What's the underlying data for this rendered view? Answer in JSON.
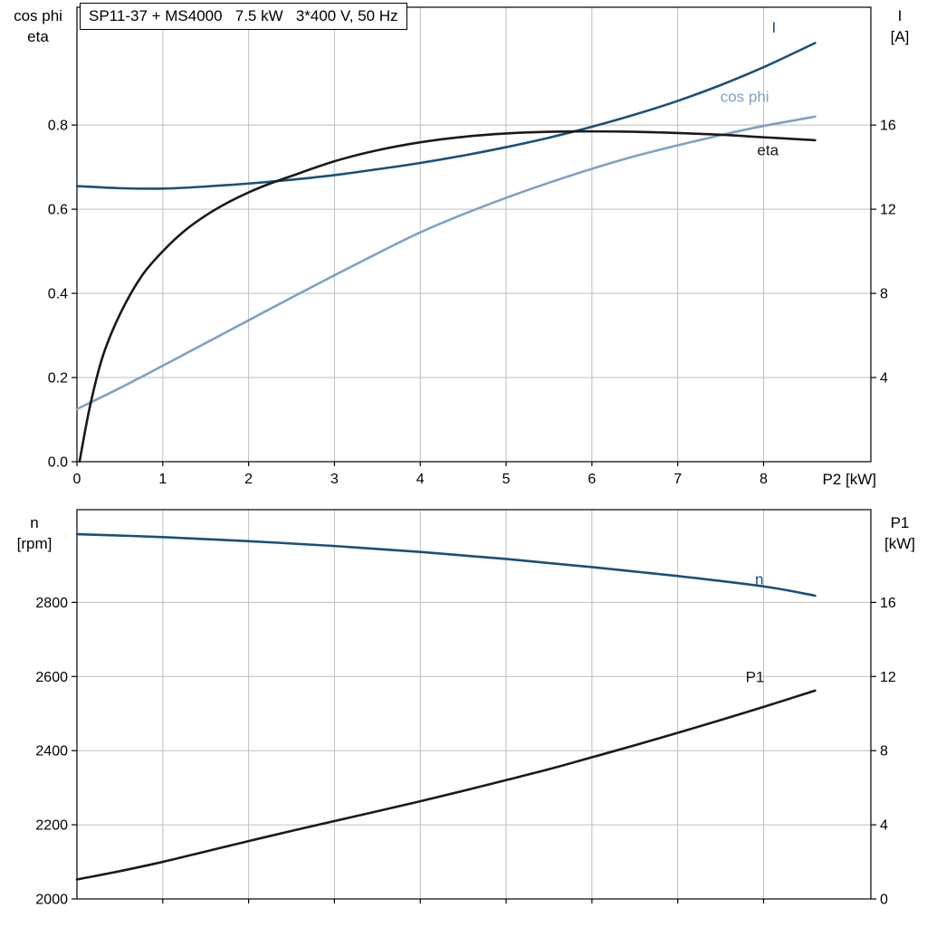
{
  "style": {
    "background": "#ffffff",
    "grid_color": "#bfbfbf",
    "frame_color": "#000000",
    "text_color": "#000000",
    "dark_blue": "#1a4f7b",
    "light_blue": "#7fa1c4",
    "black_curve": "#1a1a1a"
  },
  "chart_data": [
    {
      "type": "line",
      "title": "SP11-37 + MS4000   7.5 kW   3*400 V, 50 Hz",
      "x_axis": {
        "label": "P2 [kW]",
        "min": 0,
        "max": 9.25,
        "ticks": [
          {
            "v": 0,
            "label": "0"
          },
          {
            "v": 1,
            "label": "1"
          },
          {
            "v": 2,
            "label": "2"
          },
          {
            "v": 3,
            "label": "3"
          },
          {
            "v": 4,
            "label": "4"
          },
          {
            "v": 5,
            "label": "5"
          },
          {
            "v": 6,
            "label": "6"
          },
          {
            "v": 7,
            "label": "7"
          },
          {
            "v": 8,
            "label": "8"
          }
        ]
      },
      "y_left": {
        "label_lines": [
          "cos phi",
          "eta"
        ],
        "min": 0,
        "max": 1.08,
        "ticks": [
          {
            "v": 0,
            "label": "0.0"
          },
          {
            "v": 0.2,
            "label": "0.2"
          },
          {
            "v": 0.4,
            "label": "0.4"
          },
          {
            "v": 0.6,
            "label": "0.6"
          },
          {
            "v": 0.8,
            "label": "0.8"
          }
        ]
      },
      "y_right": {
        "label_lines": [
          "I",
          "[A]"
        ],
        "min": 0,
        "max": 21.6,
        "ticks": [
          {
            "v": 4,
            "label": "4"
          },
          {
            "v": 8,
            "label": "8"
          },
          {
            "v": 12,
            "label": "12"
          },
          {
            "v": 16,
            "label": "16"
          }
        ]
      },
      "series": [
        {
          "name": "I",
          "axis": "right",
          "color": "#1a4f7b",
          "label": {
            "text": "I",
            "x": 8.12,
            "y": 20.4
          },
          "points": [
            [
              0,
              13.1
            ],
            [
              0.5,
              13.0
            ],
            [
              1,
              12.98
            ],
            [
              1.5,
              13.08
            ],
            [
              2,
              13.22
            ],
            [
              2.5,
              13.4
            ],
            [
              3,
              13.62
            ],
            [
              3.5,
              13.9
            ],
            [
              4,
              14.2
            ],
            [
              4.5,
              14.55
            ],
            [
              5,
              14.95
            ],
            [
              5.5,
              15.4
            ],
            [
              6,
              15.92
            ],
            [
              6.5,
              16.5
            ],
            [
              7,
              17.15
            ],
            [
              7.5,
              17.9
            ],
            [
              8,
              18.75
            ],
            [
              8.6,
              19.9
            ]
          ]
        },
        {
          "name": "cos phi",
          "axis": "left",
          "color": "#7fa1c4",
          "label": {
            "text": "cos phi",
            "x": 7.78,
            "y": 0.855
          },
          "points": [
            [
              0,
              0.125
            ],
            [
              0.5,
              0.175
            ],
            [
              1,
              0.228
            ],
            [
              1.5,
              0.282
            ],
            [
              2,
              0.336
            ],
            [
              2.5,
              0.39
            ],
            [
              3,
              0.443
            ],
            [
              3.5,
              0.495
            ],
            [
              4,
              0.545
            ],
            [
              4.5,
              0.588
            ],
            [
              5,
              0.627
            ],
            [
              5.5,
              0.663
            ],
            [
              6,
              0.696
            ],
            [
              6.5,
              0.726
            ],
            [
              7,
              0.752
            ],
            [
              7.5,
              0.776
            ],
            [
              8,
              0.798
            ],
            [
              8.6,
              0.82
            ]
          ]
        },
        {
          "name": "eta",
          "axis": "left",
          "color": "#1a1a1a",
          "label": {
            "text": "eta",
            "x": 8.05,
            "y": 0.728
          },
          "points": [
            [
              0.03,
              0.0
            ],
            [
              0.15,
              0.13
            ],
            [
              0.3,
              0.25
            ],
            [
              0.5,
              0.35
            ],
            [
              0.75,
              0.44
            ],
            [
              1,
              0.5
            ],
            [
              1.25,
              0.548
            ],
            [
              1.5,
              0.585
            ],
            [
              1.75,
              0.615
            ],
            [
              2,
              0.64
            ],
            [
              2.25,
              0.661
            ],
            [
              2.5,
              0.679
            ],
            [
              3,
              0.714
            ],
            [
              3.5,
              0.74
            ],
            [
              4,
              0.759
            ],
            [
              4.5,
              0.772
            ],
            [
              5,
              0.78
            ],
            [
              5.5,
              0.784
            ],
            [
              6,
              0.785
            ],
            [
              6.5,
              0.784
            ],
            [
              7,
              0.781
            ],
            [
              7.5,
              0.777
            ],
            [
              8,
              0.771
            ],
            [
              8.6,
              0.764
            ]
          ]
        }
      ]
    },
    {
      "type": "line",
      "title": "",
      "x_axis": {
        "label": "",
        "min": 0,
        "max": 9.25,
        "ticks": [
          {
            "v": 1,
            "label": ""
          },
          {
            "v": 2,
            "label": ""
          },
          {
            "v": 3,
            "label": ""
          },
          {
            "v": 4,
            "label": ""
          },
          {
            "v": 5,
            "label": ""
          },
          {
            "v": 6,
            "label": ""
          },
          {
            "v": 7,
            "label": ""
          },
          {
            "v": 8,
            "label": ""
          }
        ]
      },
      "y_left": {
        "label_lines": [
          "n",
          "[rpm]"
        ],
        "min": 2000,
        "max": 3050,
        "ticks": [
          {
            "v": 2000,
            "label": "2000"
          },
          {
            "v": 2200,
            "label": "2200"
          },
          {
            "v": 2400,
            "label": "2400"
          },
          {
            "v": 2600,
            "label": "2600"
          },
          {
            "v": 2800,
            "label": "2800"
          }
        ]
      },
      "y_right": {
        "label_lines": [
          "P1",
          "[kW]"
        ],
        "min": 0,
        "max": 21,
        "ticks": [
          {
            "v": 0,
            "label": "0"
          },
          {
            "v": 4,
            "label": "4"
          },
          {
            "v": 8,
            "label": "8"
          },
          {
            "v": 12,
            "label": "12"
          },
          {
            "v": 16,
            "label": "16"
          }
        ]
      },
      "series": [
        {
          "name": "n",
          "axis": "left",
          "color": "#1a4f7b",
          "label": {
            "text": "n",
            "x": 7.95,
            "y": 2848
          },
          "points": [
            [
              0,
              2984
            ],
            [
              1,
              2976
            ],
            [
              2,
              2965
            ],
            [
              3,
              2952
            ],
            [
              4,
              2936
            ],
            [
              5,
              2917
            ],
            [
              6,
              2895
            ],
            [
              7,
              2871
            ],
            [
              8,
              2843
            ],
            [
              8.6,
              2818
            ]
          ]
        },
        {
          "name": "P1",
          "axis": "right",
          "color": "#1a1a1a",
          "label": {
            "text": "P1",
            "x": 7.9,
            "y": 11.7
          },
          "points": [
            [
              0,
              1.05
            ],
            [
              0.5,
              1.5
            ],
            [
              1,
              2.0
            ],
            [
              1.5,
              2.56
            ],
            [
              2,
              3.12
            ],
            [
              2.5,
              3.67
            ],
            [
              3,
              4.2
            ],
            [
              3.5,
              4.73
            ],
            [
              4,
              5.27
            ],
            [
              4.5,
              5.83
            ],
            [
              5,
              6.41
            ],
            [
              5.5,
              7.0
            ],
            [
              6,
              7.64
            ],
            [
              6.5,
              8.29
            ],
            [
              7,
              8.96
            ],
            [
              7.5,
              9.65
            ],
            [
              8,
              10.36
            ],
            [
              8.6,
              11.24
            ]
          ]
        }
      ]
    }
  ]
}
